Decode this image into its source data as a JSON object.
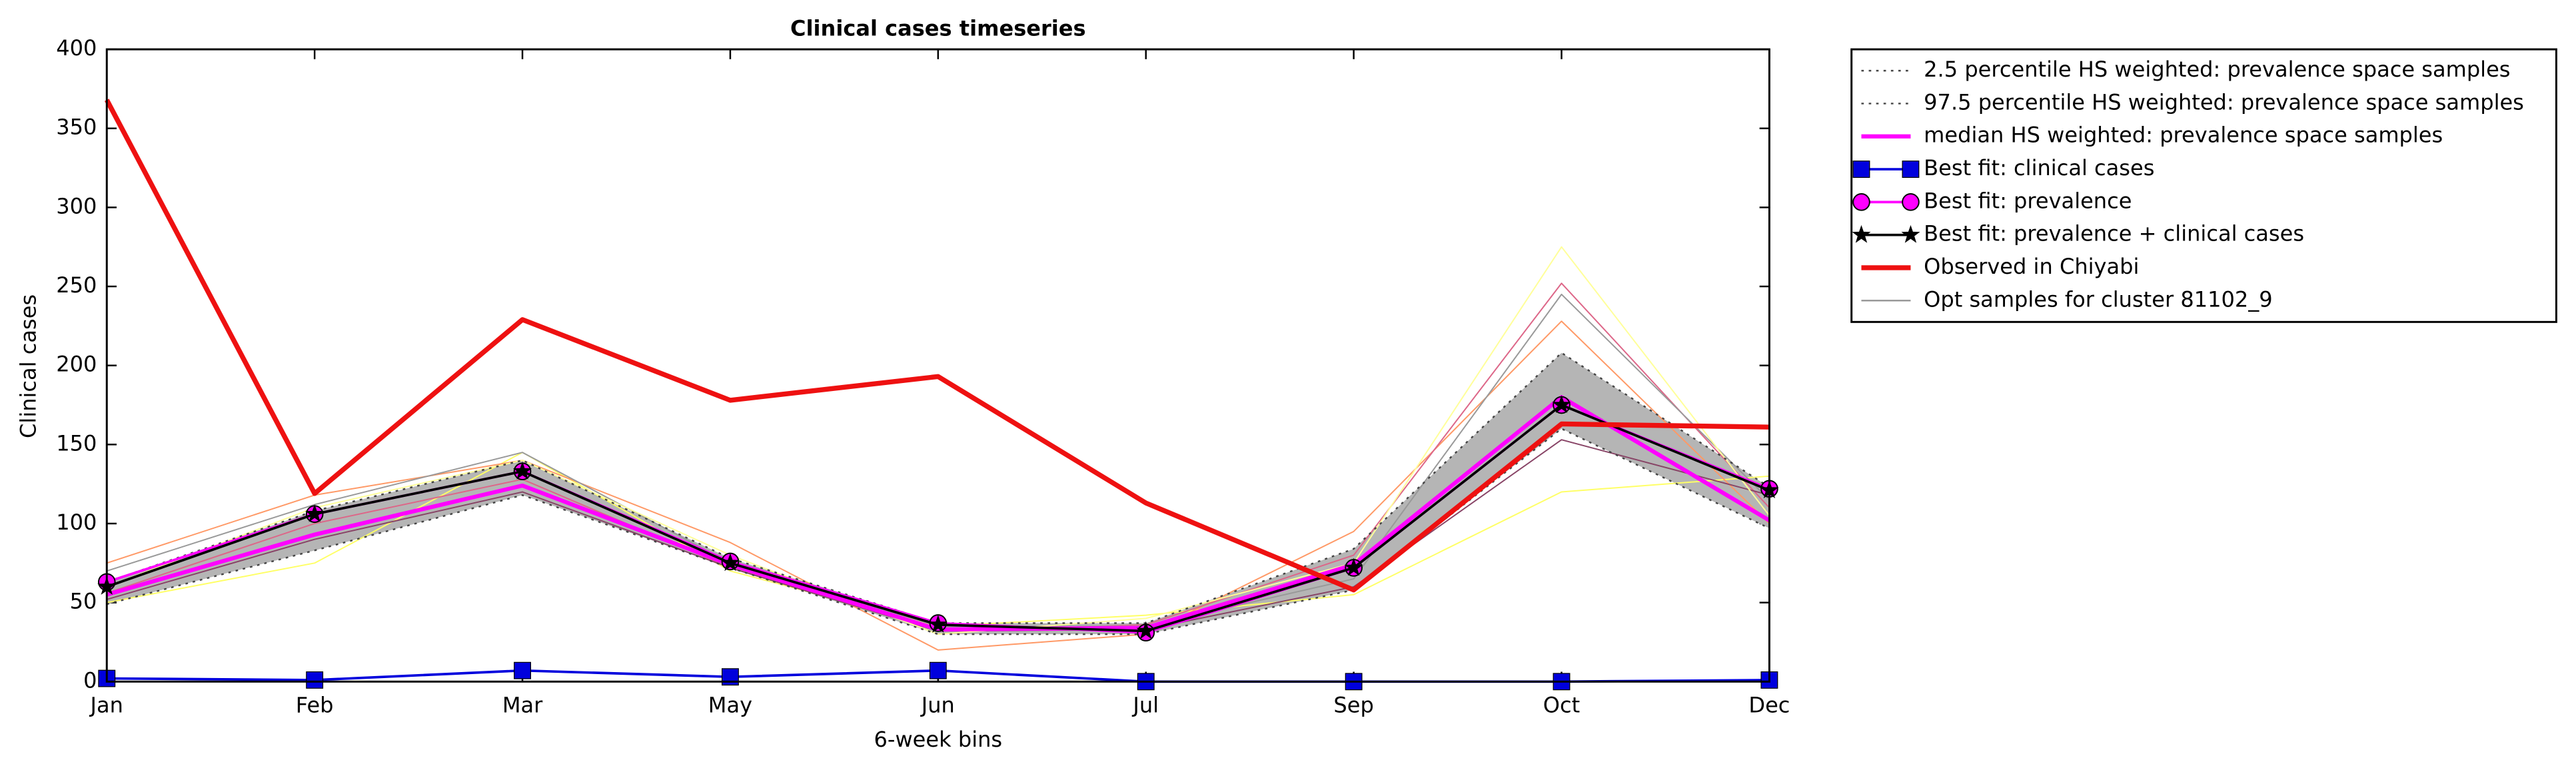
{
  "chart_data": {
    "type": "line",
    "title": "Clinical cases timeseries",
    "xlabel": "6-week bins",
    "ylabel": "Clinical cases",
    "categories": [
      "Jan",
      "Feb",
      "Mar",
      "May",
      "Jun",
      "Jul",
      "Sep",
      "Oct",
      "Dec"
    ],
    "ylim": [
      0,
      400
    ],
    "yticks": [
      0,
      50,
      100,
      150,
      200,
      250,
      300,
      350,
      400
    ],
    "band_color": "#b5b5b5",
    "legend": "outside-right",
    "series": [
      {
        "name": "2.5 percentile HS weighted: prevalence space samples",
        "color": "#444444",
        "dash": "dotted",
        "width": 1,
        "values": [
          49,
          83,
          118,
          72,
          30,
          30,
          58,
          160,
          97
        ]
      },
      {
        "name": "97.5 percentile HS weighted: prevalence space samples",
        "color": "#444444",
        "dash": "dotted",
        "width": 1,
        "values": [
          63,
          108,
          140,
          78,
          37,
          37,
          84,
          208,
          123
        ]
      },
      {
        "name": "median HS weighted: prevalence space samples",
        "color": "#ff00ff",
        "width": 2.5,
        "values": [
          55,
          93,
          124,
          74,
          33,
          34,
          74,
          180,
          102
        ]
      },
      {
        "name": "Best fit: clinical cases",
        "color": "#0000dd",
        "marker": "square",
        "width": 1.5,
        "values": [
          2,
          1,
          7,
          3,
          7,
          0,
          0,
          0,
          1
        ]
      },
      {
        "name": "Best fit: prevalence",
        "color": "#ff00ff",
        "marker": "circle",
        "width": 1.5,
        "values": [
          63,
          106,
          133,
          76,
          37,
          31,
          72,
          175,
          122
        ]
      },
      {
        "name": "Best fit: prevalence + clinical cases",
        "color": "#000000",
        "marker": "star",
        "width": 1.5,
        "values": [
          60,
          106,
          133,
          75,
          36,
          32,
          72,
          175,
          121
        ]
      },
      {
        "name": "Observed in Chiyabi",
        "color": "#ee1111",
        "width": 3,
        "values": [
          368,
          119,
          229,
          178,
          193,
          113,
          58,
          163,
          161
        ]
      },
      {
        "name": "Opt samples for cluster 81102_9",
        "color": "#999999",
        "width": 0.8,
        "samples": [
          {
            "color": "#ffff66",
            "values": [
              50,
              75,
              145,
              70,
              35,
              42,
              55,
              120,
              130
            ]
          },
          {
            "color": "#ff9966",
            "values": [
              75,
              118,
              140,
              88,
              20,
              30,
              95,
              228,
              100
            ]
          },
          {
            "color": "#dd6688",
            "values": [
              56,
              100,
              128,
              72,
              32,
              36,
              80,
              252,
              110
            ]
          },
          {
            "color": "#999999",
            "values": [
              70,
              112,
              145,
              75,
              35,
              35,
              65,
              245,
              115
            ]
          },
          {
            "color": "#884466",
            "values": [
              52,
              90,
              120,
              72,
              32,
              33,
              60,
              153,
              118
            ]
          },
          {
            "color": "#ffff99",
            "values": [
              60,
              110,
              140,
              80,
              30,
              40,
              75,
              275,
              105
            ]
          }
        ]
      }
    ]
  }
}
